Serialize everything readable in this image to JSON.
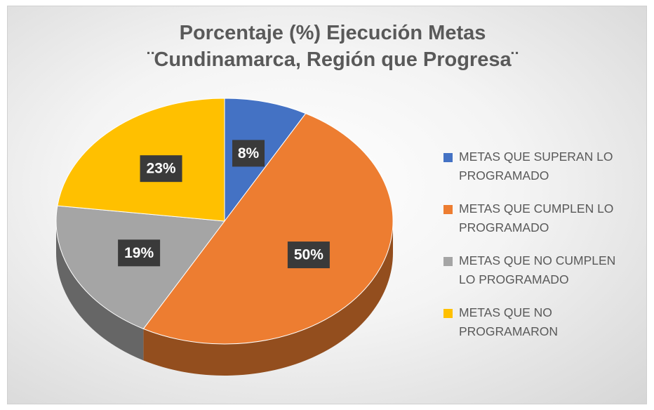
{
  "chart_data": {
    "type": "pie",
    "title": [
      "Porcentaje (%) Ejecución Metas",
      "¨Cundinamarca, Región que Progresa¨"
    ],
    "categories": [
      "METAS QUE SUPERAN LO PROGRAMADO",
      "METAS QUE CUMPLEN LO PROGRAMADO",
      "METAS QUE NO CUMPLEN LO PROGRAMADO",
      "METAS QUE NO PROGRAMARON"
    ],
    "values": [
      8,
      50,
      19,
      23
    ],
    "value_labels": [
      "8%",
      "50%",
      "19%",
      "23%"
    ],
    "colors": [
      "#4472c4",
      "#ed7d31",
      "#a5a5a5",
      "#ffc000"
    ],
    "legend": "right"
  }
}
